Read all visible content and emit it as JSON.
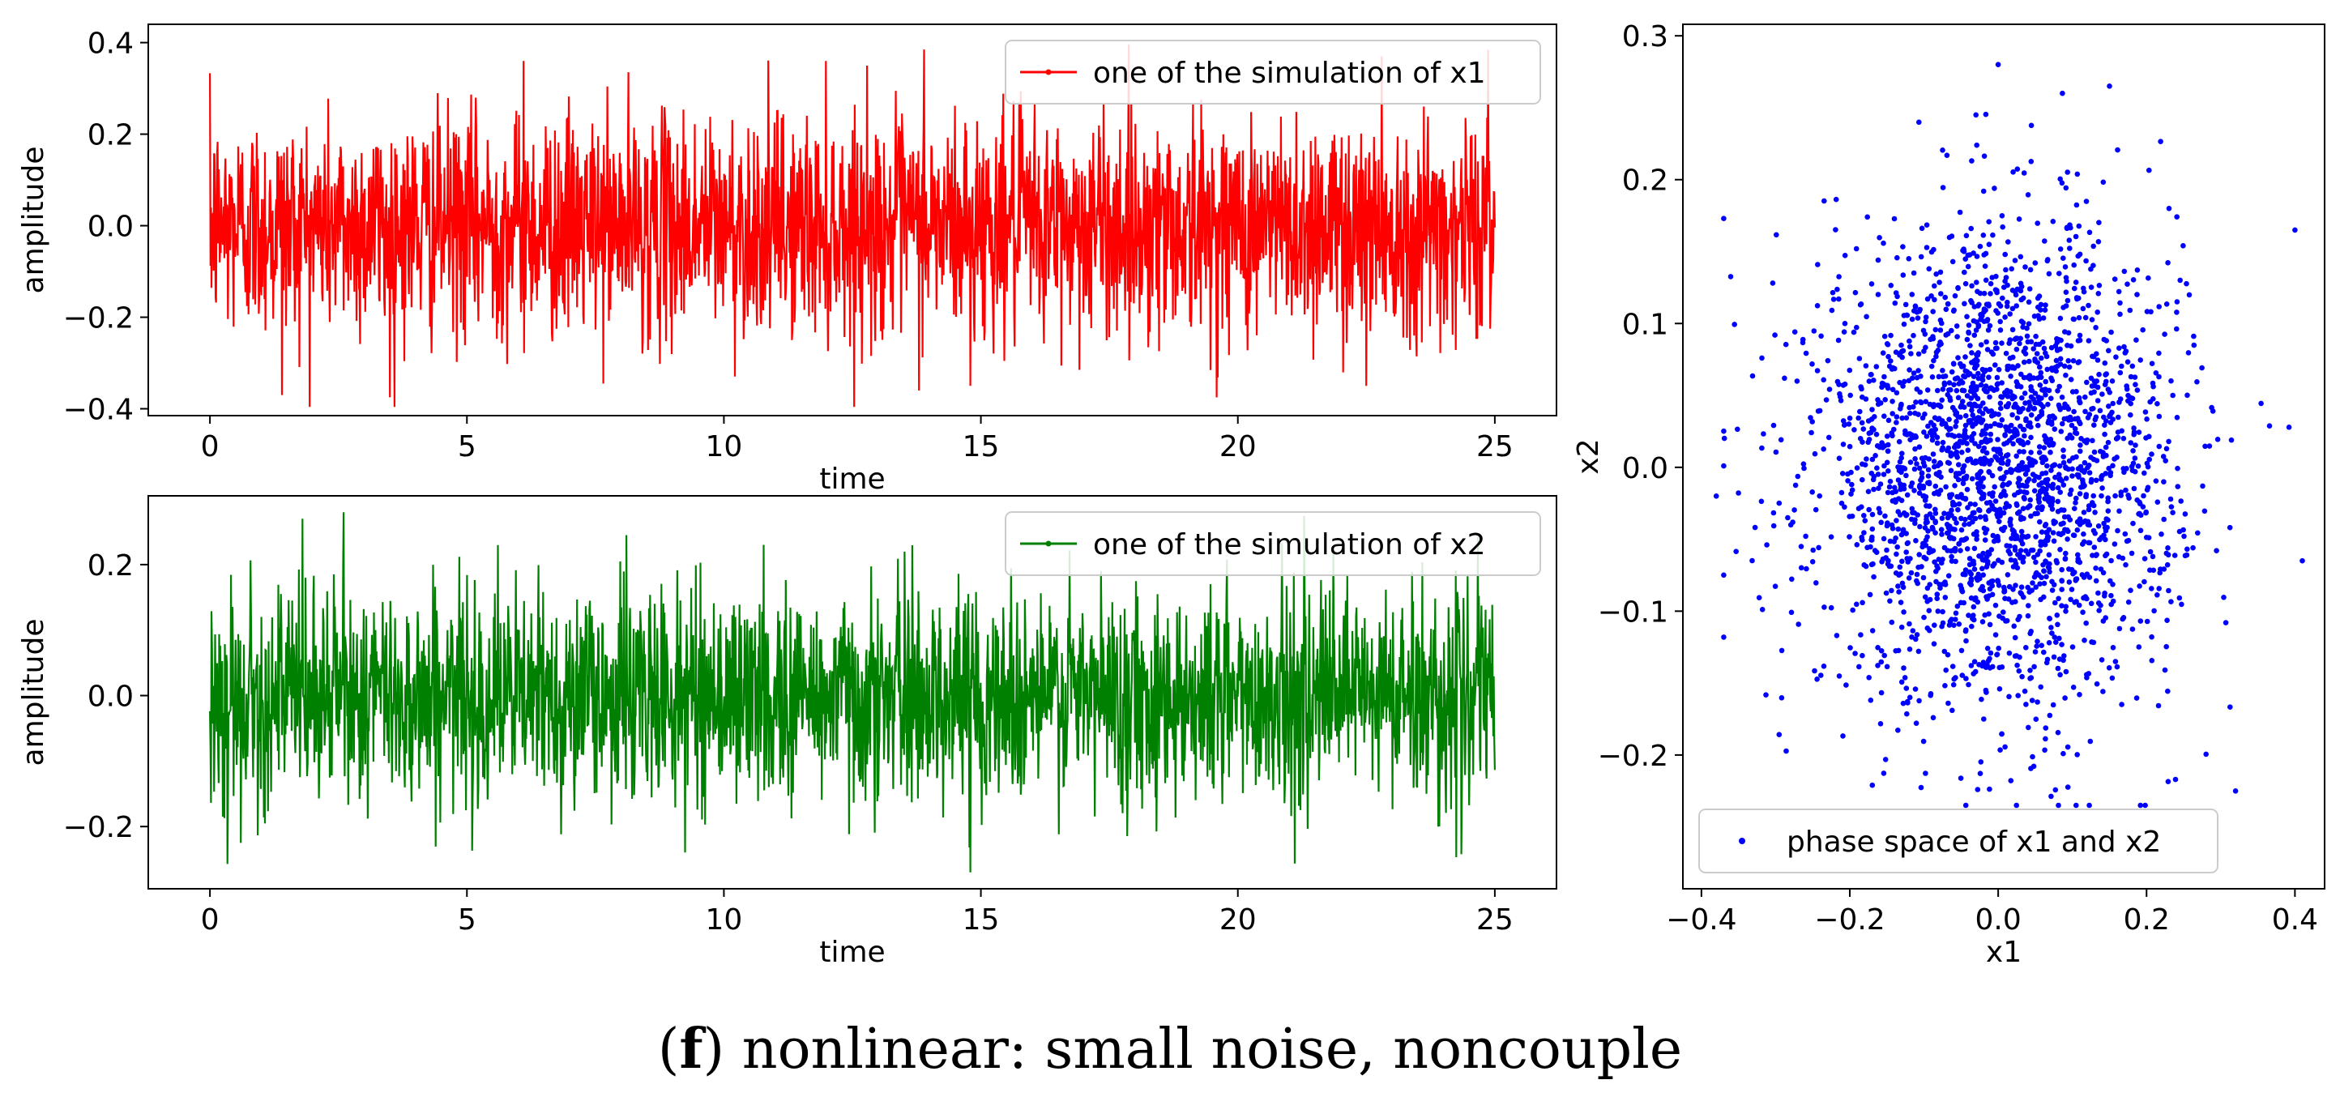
{
  "caption": {
    "label": "f",
    "text": "nonlinear: small noise, noncouple"
  },
  "chart_data": [
    {
      "type": "line",
      "name": "x1-time-series",
      "title": "",
      "xlabel": "time",
      "ylabel": "amplitude",
      "xlim": [
        -1.2,
        26.2
      ],
      "ylim": [
        -0.415,
        0.44
      ],
      "xticks": [
        "0",
        "5",
        "10",
        "15",
        "20",
        "25"
      ],
      "yticks": [
        "−0.4",
        "−0.2",
        "0.0",
        "0.2",
        "0.4"
      ],
      "legend": "one of the simulation of x1",
      "legend_position": "top-right",
      "color": "#ff0000",
      "series": {
        "name": "x1",
        "t_range": [
          0,
          25
        ],
        "n_points": 2500,
        "mean": 0.0,
        "std": 0.12,
        "extremes": [
          {
            "t": 13.9,
            "value": 0.385
          },
          {
            "t": 22.8,
            "value": 0.37
          },
          {
            "t": 6.1,
            "value": 0.36
          },
          {
            "t": 1.4,
            "value": -0.37
          },
          {
            "t": 3.5,
            "value": -0.375
          },
          {
            "t": 22.5,
            "value": -0.35
          },
          {
            "t": 14.8,
            "value": -0.35
          }
        ]
      }
    },
    {
      "type": "line",
      "name": "x2-time-series",
      "title": "",
      "xlabel": "time",
      "ylabel": "amplitude",
      "xlim": [
        -1.2,
        26.2
      ],
      "ylim": [
        -0.295,
        0.305
      ],
      "xticks": [
        "0",
        "5",
        "10",
        "15",
        "20",
        "25"
      ],
      "yticks": [
        "−0.2",
        "0.0",
        "0.2"
      ],
      "legend": "one of the simulation of x2",
      "legend_position": "top-right",
      "color": "#008000",
      "series": {
        "name": "x2",
        "t_range": [
          0,
          25
        ],
        "n_points": 2500,
        "mean": 0.0,
        "std": 0.08,
        "extremes": [
          {
            "t": 2.6,
            "value": 0.28
          },
          {
            "t": 1.8,
            "value": 0.27
          },
          {
            "t": 8.1,
            "value": 0.245
          },
          {
            "t": 14.8,
            "value": -0.27
          },
          {
            "t": 0.6,
            "value": -0.225
          },
          {
            "t": 23.9,
            "value": -0.2
          }
        ]
      }
    },
    {
      "type": "scatter",
      "name": "phase-space",
      "title": "",
      "xlabel": "x1",
      "ylabel": "x2",
      "xlim": [
        -0.425,
        0.44
      ],
      "ylim": [
        -0.293,
        0.308
      ],
      "xticks": [
        "−0.4",
        "−0.2",
        "0.0",
        "0.2",
        "0.4"
      ],
      "yticks": [
        "−0.2",
        "−0.1",
        "0.0",
        "0.1",
        "0.2",
        "0.3"
      ],
      "legend": "phase space of x1 and x2",
      "legend_position": "bottom-left",
      "color": "#0000ff",
      "series": {
        "name": "phase space of x1 and x2",
        "n_points": 2500,
        "x_mean": 0.0,
        "x_std": 0.12,
        "y_mean": 0.0,
        "y_std": 0.08,
        "outliers": [
          {
            "x": 0.0,
            "y": 0.28
          },
          {
            "x": 0.15,
            "y": 0.265
          },
          {
            "x": 0.4,
            "y": 0.165
          },
          {
            "x": 0.32,
            "y": -0.225
          },
          {
            "x": -0.38,
            "y": -0.02
          },
          {
            "x": 0.41,
            "y": -0.065
          },
          {
            "x": -0.03,
            "y": 0.245
          }
        ]
      }
    }
  ]
}
